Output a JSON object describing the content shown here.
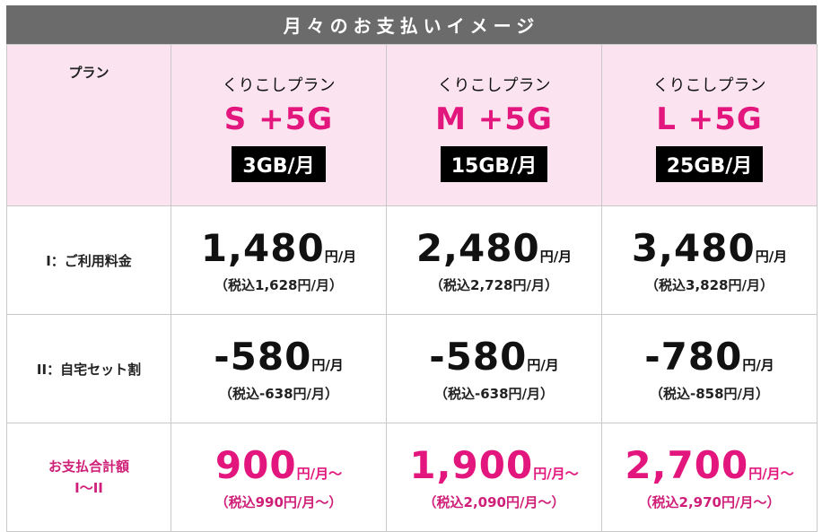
{
  "title": "月々のお支払いイメージ",
  "header": {
    "label": "プラン",
    "plans": [
      {
        "sub": "くりこしプラン",
        "name": "S +5G",
        "data": "3GB/月"
      },
      {
        "sub": "くりこしプラン",
        "name": "M +5G",
        "data": "15GB/月"
      },
      {
        "sub": "くりこしプラン",
        "name": "L +5G",
        "data": "25GB/月"
      }
    ]
  },
  "rows": {
    "fee": {
      "label": "I：ご利用料金",
      "cells": [
        {
          "amount": "1,480",
          "unit": "円/月",
          "tax": "（税込1,628円/月）"
        },
        {
          "amount": "2,480",
          "unit": "円/月",
          "tax": "（税込2,728円/月）"
        },
        {
          "amount": "3,480",
          "unit": "円/月",
          "tax": "（税込3,828円/月）"
        }
      ]
    },
    "discount": {
      "label": "II：自宅セット割",
      "cells": [
        {
          "amount": "-580",
          "unit": "円/月",
          "tax": "（税込-638円/月）"
        },
        {
          "amount": "-580",
          "unit": "円/月",
          "tax": "（税込-638円/月）"
        },
        {
          "amount": "-780",
          "unit": "円/月",
          "tax": "（税込-858円/月）"
        }
      ]
    },
    "total": {
      "label_line1": "お支払合計額",
      "label_line2": "I〜II",
      "cells": [
        {
          "amount": "900",
          "unit": "円/月〜",
          "tax": "（税込990円/月〜）"
        },
        {
          "amount": "1,900",
          "unit": "円/月〜",
          "tax": "（税込2,090円/月〜）"
        },
        {
          "amount": "2,700",
          "unit": "円/月〜",
          "tax": "（税込2,970円/月〜）"
        }
      ]
    }
  },
  "colors": {
    "accent": "#e2167d",
    "header_bg": "#fbe4ef",
    "title_bg": "#6b6b6b"
  }
}
